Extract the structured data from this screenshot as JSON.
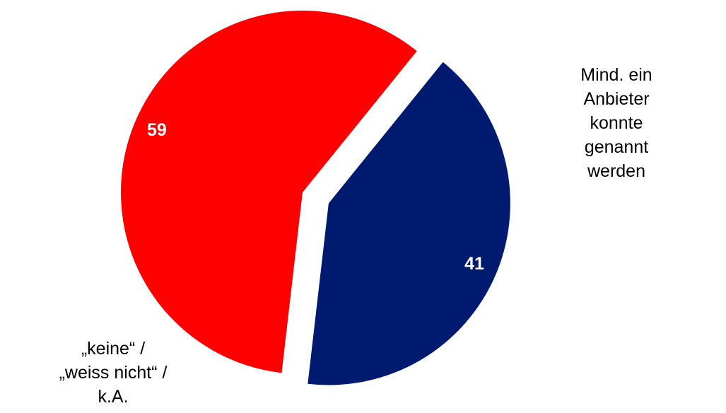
{
  "chart_data": {
    "type": "pie",
    "categories": [
      "Mind. ein Anbieter\nkonnte genannt\nwerden",
      "„keine“ /\n„weiss nicht“ /\nk.A."
    ],
    "values": [
      41,
      59
    ],
    "colors": [
      "#001a70",
      "#ff0000"
    ]
  }
}
